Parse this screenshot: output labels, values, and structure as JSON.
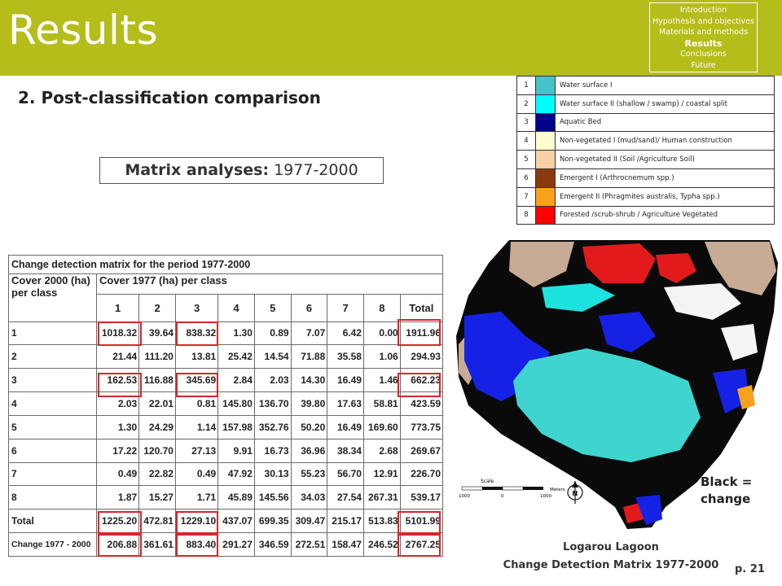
{
  "header": {
    "title": "Results",
    "bar_color": "#b5bd1a",
    "nav": [
      {
        "label": "Introduction",
        "active": false
      },
      {
        "label": "Hypothesis and objectives",
        "active": false
      },
      {
        "label": "Materials and methods",
        "active": false
      },
      {
        "label": "Results",
        "active": true
      },
      {
        "label": "Conclusions",
        "active": false
      },
      {
        "label": "Future",
        "active": false
      }
    ]
  },
  "subtitle": "2. Post-classification comparison",
  "matrix_box": {
    "label": "Matrix analyses:",
    "years": "1977-2000"
  },
  "legend": [
    {
      "num": "1",
      "color": "#46c2c9",
      "label": "Water surface I"
    },
    {
      "num": "2",
      "color": "#00ffff",
      "label": "Water surface II (shallow / swamp) / coastal split"
    },
    {
      "num": "3",
      "color": "#00008b",
      "label": "Aquatic Bed"
    },
    {
      "num": "4",
      "color": "#fffdd0",
      "label": "Non-vegetated I (mud/sand)/ Human construction"
    },
    {
      "num": "5",
      "color": "#f9cfa5",
      "label": "Non-vegetated II (Soil /Agriculture Soil)"
    },
    {
      "num": "6",
      "color": "#8b3a0f",
      "label": "Emergent I (Arthrocnemum spp.)"
    },
    {
      "num": "7",
      "color": "#f7a21b",
      "label": "Emergent II (Phragmites australis, Typha spp.)"
    },
    {
      "num": "8",
      "color": "#ff0000",
      "label": "Forested /scrub-shrub / Agriculture Vegetated"
    }
  ],
  "change_table": {
    "title": "Change detection matrix for the period 1977-2000",
    "cover2000_header": "Cover   2000    (ha) per class",
    "cover1977_header": "Cover 1977 (ha) per class",
    "columns": [
      "1",
      "2",
      "3",
      "4",
      "5",
      "6",
      "7",
      "8",
      "Total"
    ],
    "rows": [
      {
        "label": "1",
        "values": [
          "1018.32",
          "39.64",
          "838.32",
          "1.30",
          "0.89",
          "7.07",
          "6.42",
          "0.00",
          "1911.96"
        ]
      },
      {
        "label": "2",
        "values": [
          "21.44",
          "111.20",
          "13.81",
          "25.42",
          "14.54",
          "71.88",
          "35.58",
          "1.06",
          "294.93"
        ]
      },
      {
        "label": "3",
        "values": [
          "162.53",
          "116.88",
          "345.69",
          "2.84",
          "2.03",
          "14.30",
          "16.49",
          "1.46",
          "662.23"
        ]
      },
      {
        "label": "4",
        "values": [
          "2.03",
          "22.01",
          "0.81",
          "145.80",
          "136.70",
          "39.80",
          "17.63",
          "58.81",
          "423.59"
        ]
      },
      {
        "label": "5",
        "values": [
          "1.30",
          "24.29",
          "1.14",
          "157.98",
          "352.76",
          "50.20",
          "16.49",
          "169.60",
          "773.75"
        ]
      },
      {
        "label": "6",
        "values": [
          "17.22",
          "120.70",
          "27.13",
          "9.91",
          "16.73",
          "36.96",
          "38.34",
          "2.68",
          "269.67"
        ]
      },
      {
        "label": "7",
        "values": [
          "0.49",
          "22.82",
          "0.49",
          "47.92",
          "30.13",
          "55.23",
          "56.70",
          "12.91",
          "226.70"
        ]
      },
      {
        "label": "8",
        "values": [
          "1.87",
          "15.27",
          "1.71",
          "45.89",
          "145.56",
          "34.03",
          "27.54",
          "267.31",
          "539.17"
        ]
      },
      {
        "label": "Total",
        "values": [
          "1225.20",
          "472.81",
          "1229.10",
          "437.07",
          "699.35",
          "309.47",
          "215.17",
          "513.83",
          "5101.99"
        ]
      },
      {
        "label": "Change 1977 - 2000",
        "values": [
          "206.88",
          "361.61",
          "883.40",
          "291.27",
          "346.59",
          "272.51",
          "158.47",
          "246.52",
          "2767.25"
        ]
      }
    ],
    "highlight_color": "#d9262a"
  },
  "map": {
    "scale_label": "Scale",
    "scale_units": "Meters",
    "scale_ticks": [
      "1000",
      "0",
      "1000"
    ],
    "north_label": "N"
  },
  "black_note": {
    "line1": "Black =",
    "line2": "change"
  },
  "caption": {
    "line1": "Logarou Lagoon",
    "line2": "Change Detection Matrix 1977-2000"
  },
  "page_number": "p. 21"
}
